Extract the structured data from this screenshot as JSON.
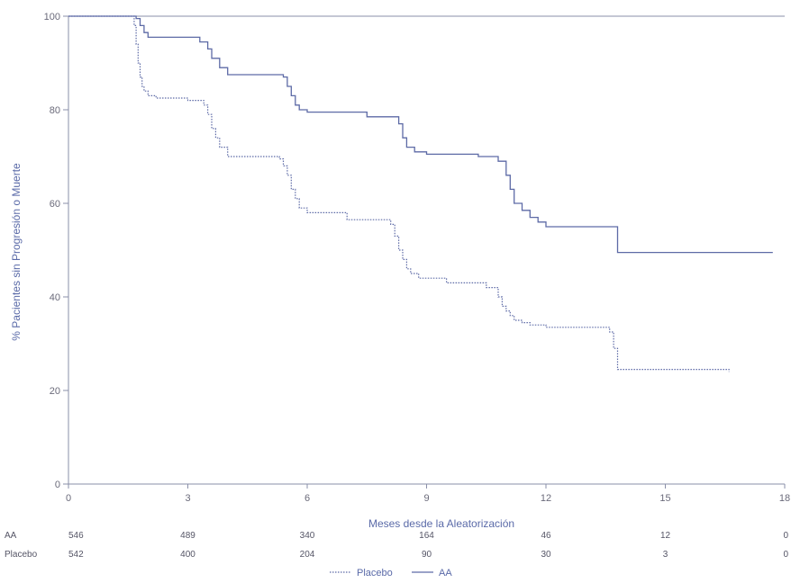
{
  "chart_data": {
    "type": "line",
    "step": true,
    "title": "",
    "xlabel": "Meses desde la Aleatorización",
    "ylabel": "% Pacientes sin Progresión o Muerte",
    "xlim": [
      0,
      18
    ],
    "ylim": [
      0,
      100
    ],
    "xticks": [
      0,
      3,
      6,
      9,
      12,
      15,
      18
    ],
    "yticks": [
      0,
      20,
      40,
      60,
      80,
      100
    ],
    "grid": false,
    "legend_position": "bottom-center",
    "series": [
      {
        "name": "AA",
        "style": "solid",
        "color": "#5d6aa6",
        "x": [
          0,
          1.7,
          1.8,
          1.9,
          2.0,
          3.3,
          3.5,
          3.6,
          3.8,
          4.0,
          5.4,
          5.5,
          5.6,
          5.7,
          5.8,
          6.0,
          7.5,
          8.3,
          8.4,
          8.5,
          8.7,
          9.0,
          10.3,
          10.8,
          11.0,
          11.1,
          11.2,
          11.4,
          11.6,
          11.8,
          12.0,
          13.7,
          13.8,
          17.7
        ],
        "y": [
          100,
          99.5,
          98,
          96.5,
          95.5,
          94.5,
          93,
          91,
          89,
          87.5,
          87,
          85,
          83,
          81,
          80,
          79.5,
          78.5,
          77,
          74,
          72,
          71,
          70.5,
          70,
          69,
          66,
          63,
          60,
          58.5,
          57,
          56,
          55,
          55,
          49.5,
          49.5
        ]
      },
      {
        "name": "Placebo",
        "style": "dotted",
        "color": "#5d6aa6",
        "x": [
          0,
          1.65,
          1.7,
          1.75,
          1.8,
          1.85,
          1.9,
          2.0,
          2.2,
          3.0,
          3.4,
          3.5,
          3.6,
          3.7,
          3.8,
          4.0,
          5.3,
          5.4,
          5.5,
          5.6,
          5.7,
          5.8,
          6.0,
          7.0,
          8.1,
          8.2,
          8.3,
          8.4,
          8.5,
          8.6,
          8.8,
          9.5,
          10.5,
          10.8,
          10.9,
          11.0,
          11.1,
          11.2,
          11.4,
          11.6,
          12.0,
          13.6,
          13.7,
          13.8,
          16.6
        ],
        "y": [
          100,
          98,
          94,
          90,
          87,
          85,
          84,
          83,
          82.5,
          82,
          81,
          79,
          76,
          74,
          72,
          70,
          69.5,
          68,
          66,
          63,
          61,
          59,
          58,
          56.5,
          55.5,
          53,
          50,
          48,
          46,
          45,
          44,
          43,
          42,
          40,
          38,
          37,
          36,
          35,
          34.5,
          34,
          33.5,
          32.5,
          29,
          24.5,
          24
        ]
      }
    ],
    "risk_table": {
      "times": [
        0,
        3,
        6,
        9,
        12,
        15,
        18
      ],
      "rows": [
        {
          "label": "AA",
          "counts": [
            "546",
            "489",
            "340",
            "164",
            "46",
            "12",
            "0"
          ]
        },
        {
          "label": "Placebo",
          "counts": [
            "542",
            "400",
            "204",
            "90",
            "30",
            "3",
            "0"
          ]
        }
      ]
    }
  }
}
